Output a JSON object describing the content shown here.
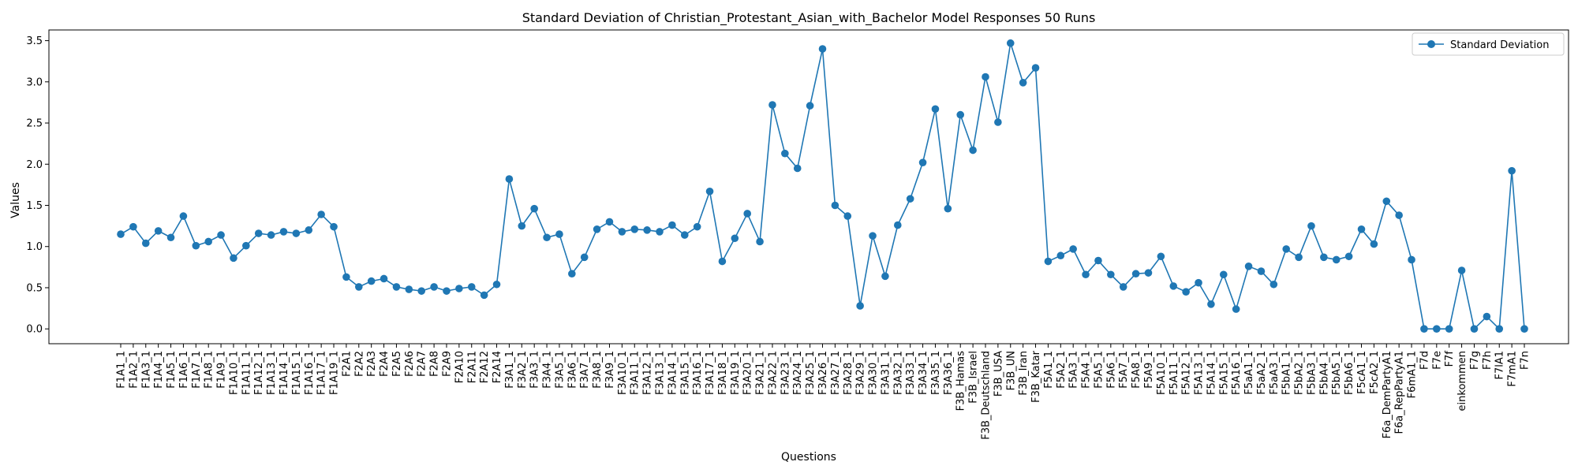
{
  "chart_data": {
    "type": "line",
    "title": "Standard Deviation of Christian_Protestant_Asian_with_Bachelor Model Responses 50 Runs",
    "xlabel": "Questions",
    "ylabel": "Values",
    "ylim": [
      -0.18,
      3.63
    ],
    "yticks": [
      0.0,
      0.5,
      1.0,
      1.5,
      2.0,
      2.5,
      3.0,
      3.5
    ],
    "ytick_labels": [
      "0.0",
      "0.5",
      "1.0",
      "1.5",
      "2.0",
      "2.5",
      "3.0",
      "3.5"
    ],
    "grid": false,
    "legend_position": "upper right",
    "categories": [
      "F1A1_1",
      "F1A2_1",
      "F1A3_1",
      "F1A4_1",
      "F1A5_1",
      "F1A6_1",
      "F1A7_1",
      "F1A8_1",
      "F1A9_1",
      "F1A10_1",
      "F1A11_1",
      "F1A12_1",
      "F1A13_1",
      "F1A14_1",
      "F1A15_1",
      "F1A16_1",
      "F1A17_1",
      "F1A19_1",
      "F2A1",
      "F2A2",
      "F2A3",
      "F2A4",
      "F2A5",
      "F2A6",
      "F2A7",
      "F2A8",
      "F2A9",
      "F2A10",
      "F2A11",
      "F2A12",
      "F2A14",
      "F3A1_1",
      "F3A2_1",
      "F3A3_1",
      "F3A4_1",
      "F3A5_1",
      "F3A6_1",
      "F3A7_1",
      "F3A8_1",
      "F3A9_1",
      "F3A10_1",
      "F3A11_1",
      "F3A12_1",
      "F3A13_1",
      "F3A14_1",
      "F3A15_1",
      "F3A16_1",
      "F3A17_1",
      "F3A18_1",
      "F3A19_1",
      "F3A20_1",
      "F3A21_1",
      "F3A22_1",
      "F3A23_1",
      "F3A24_1",
      "F3A25_1",
      "F3A26_1",
      "F3A27_1",
      "F3A28_1",
      "F3A29_1",
      "F3A30_1",
      "F3A31_1",
      "F3A32_1",
      "F3A33_1",
      "F3A34_1",
      "F3A35_1",
      "F3A36_1",
      "F3B_Hamas",
      "F3B_Israel",
      "F3B_Deutschland",
      "F3B_USA",
      "F3B_UN",
      "F3B_Iran",
      "F3B_Katar",
      "F5A1_1",
      "F5A2_1",
      "F5A3_1",
      "F5A4_1",
      "F5A5_1",
      "F5A6_1",
      "F5A7_1",
      "F5A8_1",
      "F5A9_1",
      "F5A10_1",
      "F5A11_1",
      "F5A12_1",
      "F5A13_1",
      "F5A14_1",
      "F5A15_1",
      "F5A16_1",
      "F5aA1_1",
      "F5aA2_1",
      "F5aA3_1",
      "F5bA1_1",
      "F5bA2_1",
      "F5bA3_1",
      "F5bA4_1",
      "F5bA5_1",
      "F5bA6_1",
      "F5cA1_1",
      "F5cA2_1",
      "F6a_DemPartyA1",
      "F6a_RepPartyA1",
      "F6mA1_1",
      "F7d",
      "F7e",
      "F7f",
      "einkommen",
      "F7g",
      "F7h",
      "F7lA1",
      "F7mA1",
      "F7n"
    ],
    "series": [
      {
        "name": "Standard Deviation",
        "color": "#1f77b4",
        "marker": "circle",
        "values": [
          1.15,
          1.24,
          1.04,
          1.19,
          1.11,
          1.37,
          1.01,
          1.06,
          1.14,
          0.86,
          1.01,
          1.16,
          1.14,
          1.18,
          1.16,
          1.2,
          1.39,
          1.24,
          0.63,
          0.51,
          0.58,
          0.61,
          0.51,
          0.48,
          0.46,
          0.51,
          0.46,
          0.49,
          0.51,
          0.41,
          0.54,
          1.82,
          1.25,
          1.46,
          1.11,
          1.15,
          0.67,
          0.87,
          1.21,
          1.3,
          1.18,
          1.21,
          1.2,
          1.18,
          1.26,
          1.14,
          1.24,
          1.67,
          0.82,
          1.1,
          1.4,
          1.06,
          2.72,
          2.13,
          1.95,
          2.71,
          3.4,
          1.5,
          1.37,
          0.28,
          1.13,
          0.64,
          1.26,
          1.58,
          2.02,
          2.67,
          1.46,
          2.6,
          2.17,
          3.06,
          2.51,
          3.47,
          2.99,
          3.17,
          0.82,
          0.89,
          0.97,
          0.66,
          0.83,
          0.66,
          0.51,
          0.67,
          0.68,
          0.88,
          0.52,
          0.45,
          0.56,
          0.3,
          0.66,
          0.24,
          0.76,
          0.7,
          0.54,
          0.97,
          0.87,
          1.25,
          0.87,
          0.84,
          0.88,
          1.21,
          1.03,
          1.55,
          1.38,
          0.84,
          0.0,
          0.0,
          0.0,
          0.71,
          0.0,
          0.15,
          0.0,
          1.92,
          0.0
        ]
      }
    ]
  }
}
